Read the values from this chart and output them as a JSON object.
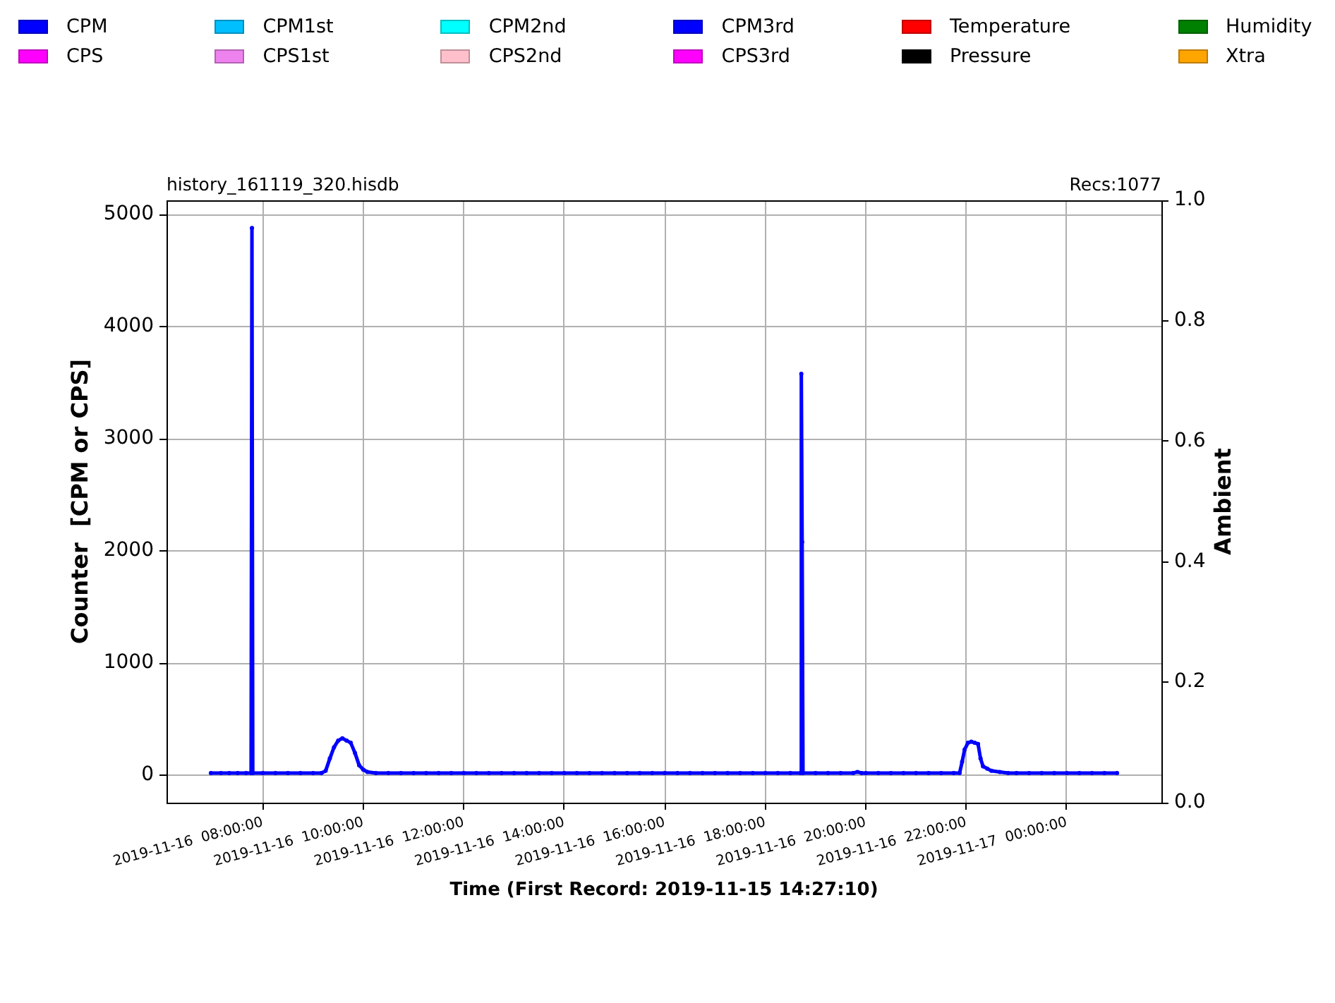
{
  "chart_data": {
    "type": "line",
    "annotations": [
      "history_161119_320.hisdb",
      "Recs:1077"
    ],
    "xlabel": "Time (First Record: 2019-11-15 14:27:10)",
    "ylabel": "Counter  [CPM or CPS]",
    "y2label": "Ambient",
    "series": [
      {
        "name": "CPM",
        "color": "#0000ff",
        "x": [
          "2019-11-16T06:58",
          "2019-11-16T07:10",
          "2019-11-16T07:20",
          "2019-11-16T07:30",
          "2019-11-16T07:40",
          "2019-11-16T07:46",
          "2019-11-16T07:47",
          "2019-11-16T07:48",
          "2019-11-16T08:00",
          "2019-11-16T08:15",
          "2019-11-16T08:30",
          "2019-11-16T08:45",
          "2019-11-16T09:00",
          "2019-11-16T09:10",
          "2019-11-16T09:15",
          "2019-11-16T09:20",
          "2019-11-16T09:25",
          "2019-11-16T09:30",
          "2019-11-16T09:35",
          "2019-11-16T09:40",
          "2019-11-16T09:45",
          "2019-11-16T09:50",
          "2019-11-16T09:55",
          "2019-11-16T10:00",
          "2019-11-16T10:05",
          "2019-11-16T10:15",
          "2019-11-16T10:30",
          "2019-11-16T10:45",
          "2019-11-16T11:00",
          "2019-11-16T11:15",
          "2019-11-16T11:30",
          "2019-11-16T11:45",
          "2019-11-16T12:00",
          "2019-11-16T12:15",
          "2019-11-16T12:30",
          "2019-11-16T12:45",
          "2019-11-16T13:00",
          "2019-11-16T13:15",
          "2019-11-16T13:30",
          "2019-11-16T13:45",
          "2019-11-16T14:00",
          "2019-11-16T14:15",
          "2019-11-16T14:30",
          "2019-11-16T14:45",
          "2019-11-16T15:00",
          "2019-11-16T15:15",
          "2019-11-16T15:30",
          "2019-11-16T15:45",
          "2019-11-16T16:00",
          "2019-11-16T16:15",
          "2019-11-16T16:30",
          "2019-11-16T16:45",
          "2019-11-16T17:00",
          "2019-11-16T17:15",
          "2019-11-16T17:30",
          "2019-11-16T17:45",
          "2019-11-16T18:00",
          "2019-11-16T18:15",
          "2019-11-16T18:30",
          "2019-11-16T18:42",
          "2019-11-16T18:43",
          "2019-11-16T18:44",
          "2019-11-16T18:45",
          "2019-11-16T19:00",
          "2019-11-16T19:15",
          "2019-11-16T19:30",
          "2019-11-16T19:45",
          "2019-11-16T19:50",
          "2019-11-16T19:55",
          "2019-11-16T20:00",
          "2019-11-16T20:15",
          "2019-11-16T20:30",
          "2019-11-16T20:45",
          "2019-11-16T21:00",
          "2019-11-16T21:15",
          "2019-11-16T21:30",
          "2019-11-16T21:45",
          "2019-11-16T21:52",
          "2019-11-16T21:55",
          "2019-11-16T21:58",
          "2019-11-16T22:02",
          "2019-11-16T22:06",
          "2019-11-16T22:10",
          "2019-11-16T22:14",
          "2019-11-16T22:17",
          "2019-11-16T22:20",
          "2019-11-16T22:25",
          "2019-11-16T22:30",
          "2019-11-16T22:40",
          "2019-11-16T22:50",
          "2019-11-16T23:00",
          "2019-11-16T23:15",
          "2019-11-16T23:30",
          "2019-11-16T23:45",
          "2019-11-17T00:00",
          "2019-11-17T00:15",
          "2019-11-17T00:30",
          "2019-11-17T00:45",
          "2019-11-17T01:00"
        ],
        "values": [
          20,
          20,
          20,
          20,
          20,
          20,
          4880,
          20,
          20,
          20,
          20,
          20,
          20,
          20,
          40,
          150,
          250,
          310,
          330,
          310,
          290,
          200,
          90,
          50,
          30,
          20,
          20,
          20,
          20,
          20,
          20,
          20,
          20,
          20,
          20,
          20,
          20,
          20,
          20,
          20,
          20,
          20,
          20,
          20,
          20,
          20,
          20,
          20,
          20,
          20,
          20,
          20,
          20,
          20,
          20,
          20,
          20,
          20,
          20,
          20,
          3580,
          2080,
          20,
          20,
          20,
          20,
          20,
          30,
          20,
          20,
          20,
          20,
          20,
          20,
          20,
          20,
          20,
          20,
          120,
          230,
          290,
          300,
          290,
          280,
          150,
          80,
          60,
          40,
          30,
          20,
          20,
          20,
          20,
          20,
          20,
          20,
          20,
          20,
          20
        ]
      },
      {
        "name": "CPS",
        "color": "#ff00ff"
      },
      {
        "name": "CPM1st",
        "color": "#00bfff"
      },
      {
        "name": "CPS1st",
        "color": "#ee82ee"
      },
      {
        "name": "CPM2nd",
        "color": "#00ffff"
      },
      {
        "name": "CPS2nd",
        "color": "#ffc0cb"
      },
      {
        "name": "CPM3rd",
        "color": "#0000ff"
      },
      {
        "name": "CPS3rd",
        "color": "#ff00ff"
      },
      {
        "name": "Temperature",
        "color": "#ff0000"
      },
      {
        "name": "Pressure",
        "color": "#000000"
      },
      {
        "name": "Humidity",
        "color": "#008000"
      },
      {
        "name": "Xtra",
        "color": "#ffa500"
      }
    ],
    "xlim": [
      "2019-11-16T06:05",
      "2019-11-17T01:53"
    ],
    "xticks": [
      {
        "value": "2019-11-16T08:00",
        "label": "2019-11-16  08:00:00"
      },
      {
        "value": "2019-11-16T10:00",
        "label": "2019-11-16  10:00:00"
      },
      {
        "value": "2019-11-16T12:00",
        "label": "2019-11-16  12:00:00"
      },
      {
        "value": "2019-11-16T14:00",
        "label": "2019-11-16  14:00:00"
      },
      {
        "value": "2019-11-16T16:00",
        "label": "2019-11-16  16:00:00"
      },
      {
        "value": "2019-11-16T18:00",
        "label": "2019-11-16  18:00:00"
      },
      {
        "value": "2019-11-16T20:00",
        "label": "2019-11-16  20:00:00"
      },
      {
        "value": "2019-11-16T22:00",
        "label": "2019-11-16  22:00:00"
      },
      {
        "value": "2019-11-17T00:00",
        "label": "2019-11-17  00:00:00"
      }
    ],
    "ylim": [
      -244,
      5127
    ],
    "yticks": [
      0,
      1000,
      2000,
      3000,
      4000,
      5000
    ],
    "y2lim": [
      0,
      1
    ],
    "y2ticks": [
      {
        "value": 0,
        "label": "0.0"
      },
      {
        "value": 0.2,
        "label": "0.2"
      },
      {
        "value": 0.4,
        "label": "0.4"
      },
      {
        "value": 0.6,
        "label": "0.6"
      },
      {
        "value": 0.8,
        "label": "0.8"
      },
      {
        "value": 1,
        "label": "1.0"
      }
    ],
    "grid": true,
    "legend": "top",
    "marker": "circle"
  }
}
